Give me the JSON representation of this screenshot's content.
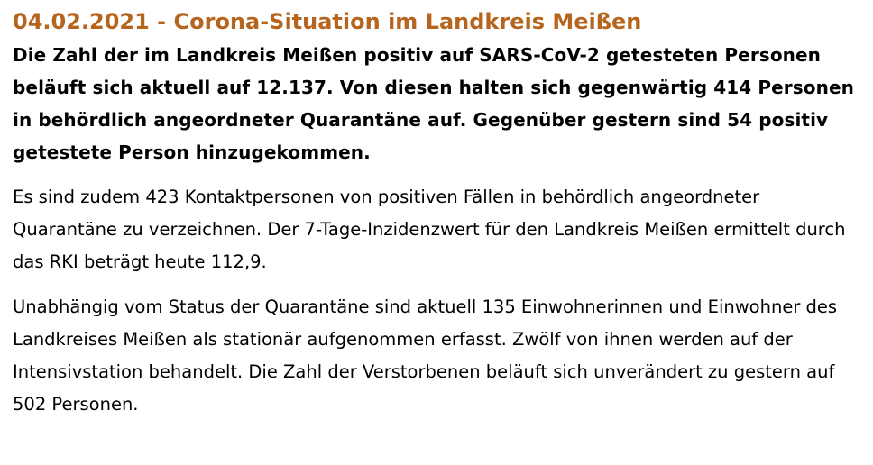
{
  "article": {
    "headline": "04.02.2021 - Corona-Situation im Landkreis Meißen",
    "lead": "Die Zahl der im Landkreis Meißen positiv auf SARS-CoV-2 getesteten Personen beläuft sich aktuell auf 12.137. Von diesen halten sich gegenwärtig 414 Personen in behördlich angeordneter Quarantäne auf. Gegenüber gestern sind 54 positiv getestete Person hinzugekommen.",
    "paragraphs": [
      "Es sind zudem 423 Kontaktpersonen von positiven Fällen in behördlich angeordneter Quarantäne zu verzeichnen. Der 7-Tage-Inzidenzwert für den Landkreis Meißen ermittelt durch das RKI beträgt heute 112,9.",
      "Unabhängig vom Status der Quarantäne sind aktuell 135 Einwohnerinnen und Einwohner des Landkreises Meißen als stationär aufgenommen erfasst. Zwölf von ihnen werden auf der Intensivstation behandelt. Die Zahl der Verstorbenen beläuft sich unverändert zu gestern auf 502 Personen."
    ]
  },
  "colors": {
    "headline": "#b5651d",
    "text": "#000000",
    "background": "#ffffff"
  }
}
